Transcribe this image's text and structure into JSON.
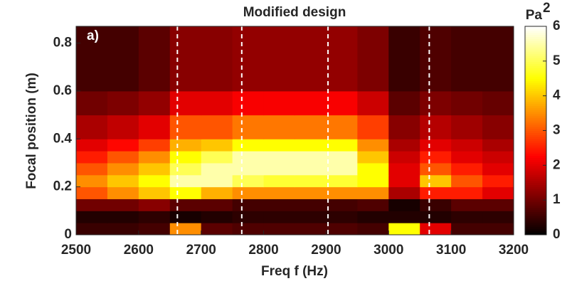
{
  "chart_data": {
    "type": "heatmap",
    "title": "Modified design",
    "annotation": "a)",
    "xlabel": "Freq f (Hz)",
    "ylabel": "Focal position (m)",
    "colorbar_label": "Pa",
    "colorbar_label_exponent": "2",
    "colormap": "hot",
    "x": [
      2500,
      2550,
      2600,
      2650,
      2700,
      2750,
      2800,
      2850,
      2900,
      2950,
      3000,
      3050,
      3100,
      3150,
      3200
    ],
    "y": [
      0,
      0.05,
      0.1,
      0.15,
      0.2,
      0.25,
      0.3,
      0.35,
      0.4,
      0.5,
      0.6,
      0.87
    ],
    "values": [
      [
        0.5,
        0.5,
        0.6,
        3.5,
        0.8,
        0.7,
        0.7,
        0.7,
        0.7,
        0.6,
        4.5,
        2,
        0.6,
        0.6
      ],
      [
        0.3,
        0.3,
        0.4,
        0.2,
        0.3,
        0.4,
        0.4,
        0.4,
        0.4,
        0.3,
        0.3,
        0.3,
        0.4,
        0.4
      ],
      [
        1,
        1,
        1.2,
        0.8,
        0.8,
        0.6,
        0.6,
        0.6,
        0.6,
        0.7,
        0.2,
        0.5,
        0.8,
        0.8
      ],
      [
        3,
        3.5,
        4,
        4.5,
        3.8,
        3.5,
        3.5,
        3.5,
        3.5,
        3.5,
        1.5,
        2.5,
        2.5,
        2
      ],
      [
        3.5,
        4,
        4.5,
        5.5,
        5.5,
        5,
        4.8,
        4.8,
        4.8,
        4.5,
        2,
        4,
        3,
        2.5
      ],
      [
        3,
        3.5,
        4,
        5,
        5.5,
        5.5,
        5.5,
        5.5,
        5.5,
        4.5,
        2,
        3,
        2.5,
        2
      ],
      [
        2.5,
        3,
        3.5,
        4.5,
        5,
        5.5,
        5.5,
        5.5,
        5.5,
        4,
        1.8,
        2.5,
        2,
        1.8
      ],
      [
        2,
        2.3,
        2.8,
        3.8,
        4,
        4.5,
        4.5,
        4.5,
        4.5,
        3.5,
        1.5,
        2,
        1.8,
        1.5
      ],
      [
        1.5,
        1.7,
        2,
        3,
        3,
        3.3,
        3.3,
        3.3,
        3.3,
        2.8,
        1.2,
        1.6,
        1.4,
        1.2
      ],
      [
        1,
        1.1,
        1.3,
        2,
        2,
        2.2,
        2.2,
        2.2,
        2.2,
        1.8,
        0.8,
        1.1,
        1,
        0.9
      ],
      [
        0.6,
        0.6,
        0.8,
        1.2,
        1.2,
        1.3,
        1.3,
        1.3,
        1.3,
        1.1,
        0.5,
        0.7,
        0.6,
        0.6
      ]
    ],
    "vlines": [
      2662,
      2765,
      2903,
      3065
    ],
    "xlim": [
      2500,
      3200
    ],
    "xticks": [
      2500,
      2600,
      2700,
      2800,
      2900,
      3000,
      3100,
      3200
    ],
    "ylim": [
      0,
      0.87
    ],
    "yticks": [
      0,
      0.2,
      0.4,
      0.6,
      0.8
    ],
    "clim": [
      0,
      6
    ],
    "cticks": [
      0,
      1,
      2,
      3,
      4,
      5,
      6
    ]
  }
}
